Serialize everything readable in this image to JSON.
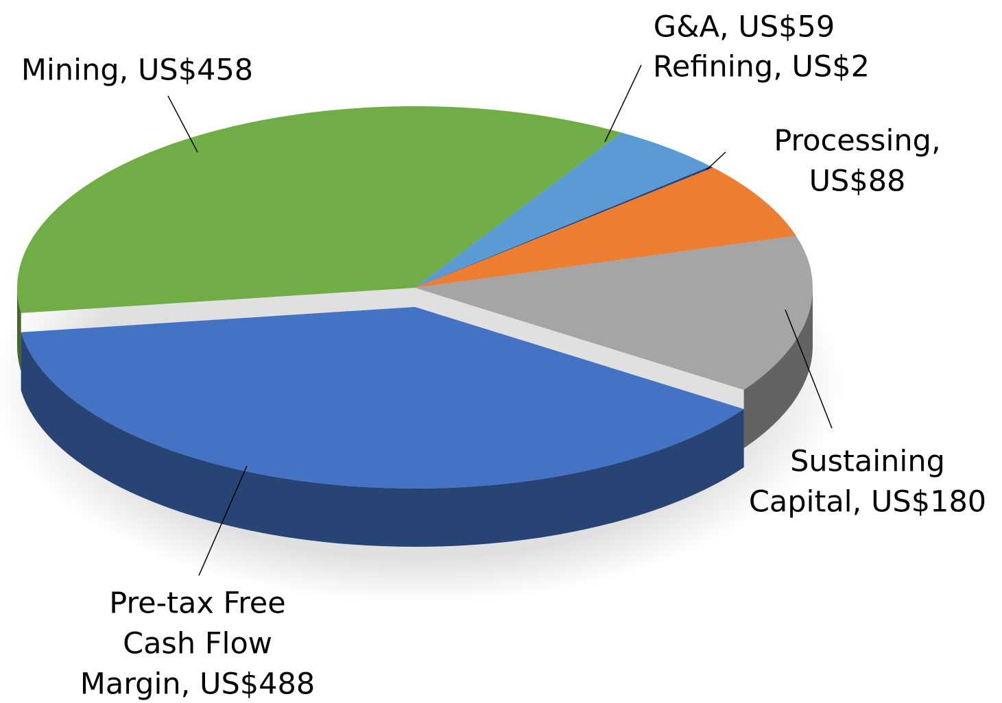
{
  "chart_data": {
    "type": "pie3d",
    "categories": [
      "Mining",
      "G&A",
      "Refining",
      "Processing",
      "Sustaining Capital",
      "Pre-tax Free Cash Flow Margin"
    ],
    "values": [
      458,
      59,
      2,
      88,
      180,
      488
    ],
    "value_labels": [
      [
        "Mining, US$458"
      ],
      [
        "G&A, US$59"
      ],
      [
        "Refining, US$2"
      ],
      [
        "Processing,",
        "US$88"
      ],
      [
        "Sustaining",
        "Capital, US$180"
      ],
      [
        "Pre-tax Free",
        "Cash Flow",
        "Margin, US$488"
      ]
    ],
    "colors": [
      "#70ad47",
      "#5b9bd5",
      "#264478",
      "#ed7d31",
      "#a5a5a5",
      "#4472c4"
    ]
  }
}
